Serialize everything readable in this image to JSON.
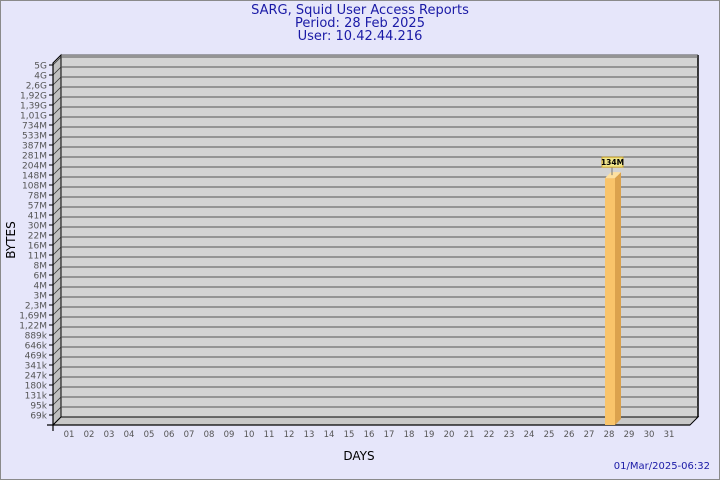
{
  "chart_data": {
    "type": "bar",
    "title": "SARG, Squid User Access Reports",
    "subtitle": [
      "Period: 28 Feb 2025",
      "User: 10.42.44.216"
    ],
    "xlabel": "DAYS",
    "ylabel": "BYTES",
    "y_scale": "log",
    "y_tick_labels": [
      "5G",
      "4G",
      "2,6G",
      "1,92G",
      "1,39G",
      "1,01G",
      "734M",
      "533M",
      "387M",
      "281M",
      "204M",
      "148M",
      "108M",
      "78M",
      "57M",
      "41M",
      "30M",
      "22M",
      "16M",
      "11M",
      "8M",
      "6M",
      "4M",
      "3M",
      "2,3M",
      "1,69M",
      "1,22M",
      "889k",
      "646k",
      "469k",
      "341k",
      "247k",
      "180k",
      "131k",
      "95k",
      "69k"
    ],
    "categories": [
      "01",
      "02",
      "03",
      "04",
      "05",
      "06",
      "07",
      "08",
      "09",
      "10",
      "11",
      "12",
      "13",
      "14",
      "15",
      "16",
      "17",
      "18",
      "19",
      "20",
      "21",
      "22",
      "23",
      "24",
      "25",
      "26",
      "27",
      "28",
      "29",
      "30",
      "31"
    ],
    "bars": [
      {
        "day": "28",
        "value_label": "134M",
        "value": 134000000
      }
    ],
    "grid": true,
    "colors": {
      "bar": "#f9c46a",
      "bar_side": "#dba24d",
      "plot_bg": "#d3d3d3",
      "title": "#1a1aa6"
    }
  },
  "footer": {
    "timestamp": "01/Mar/2025-06:32"
  }
}
